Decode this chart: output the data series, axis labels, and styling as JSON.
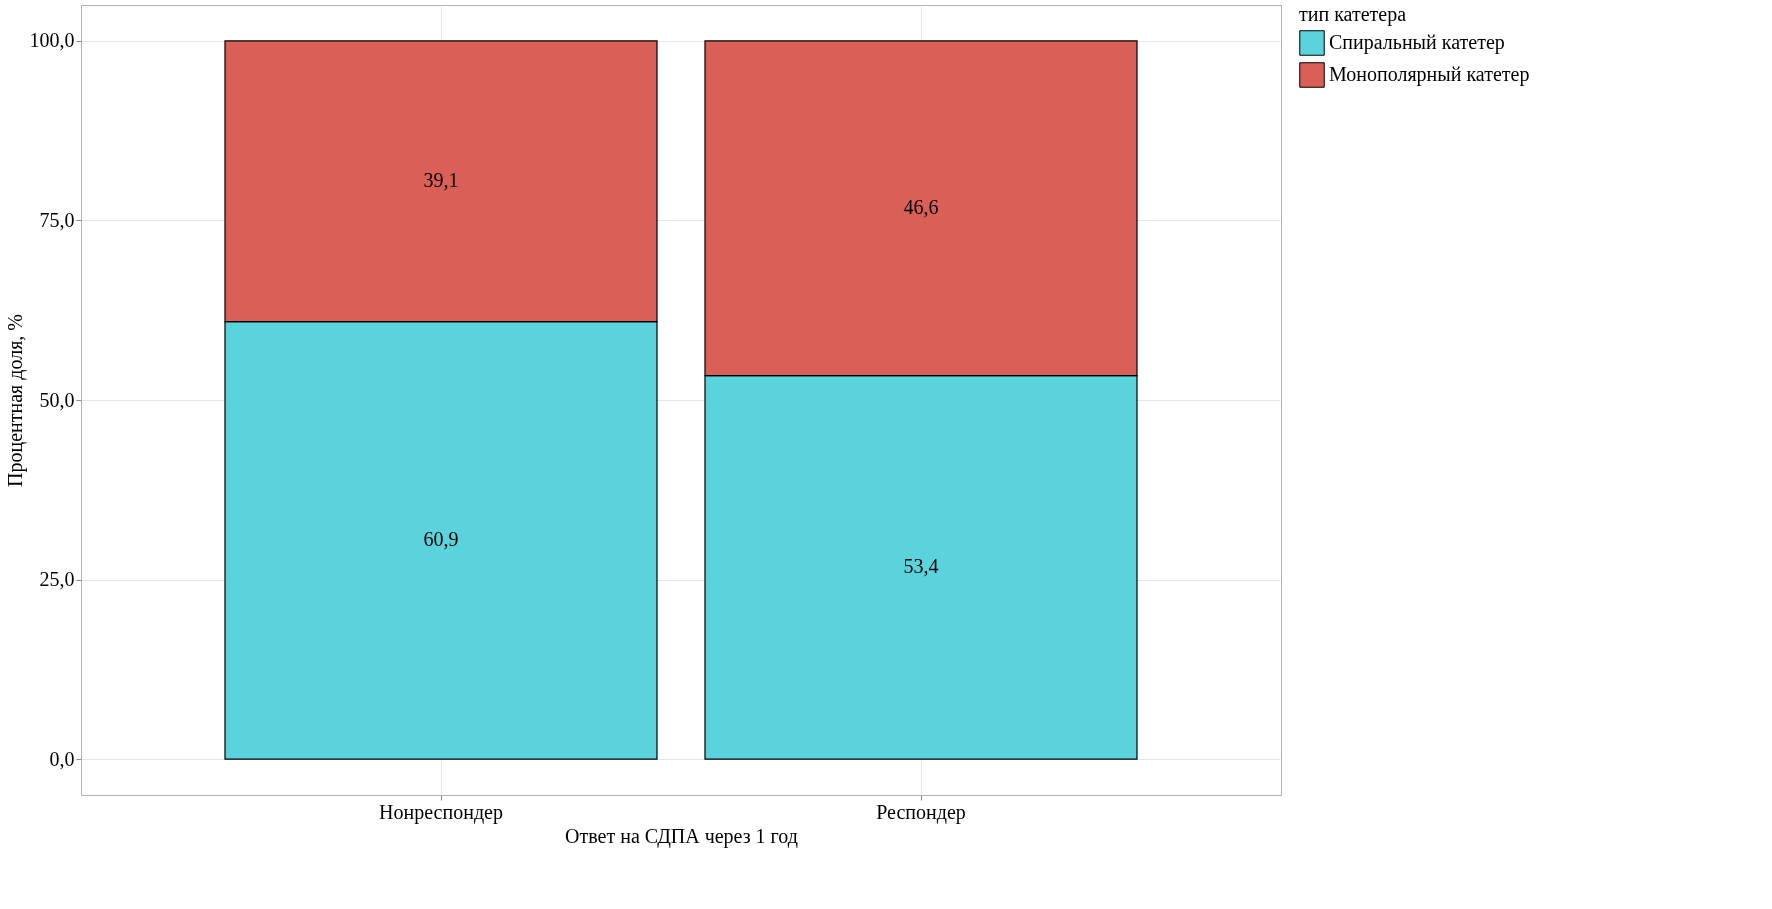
{
  "chart_data": {
    "type": "bar",
    "stacked": true,
    "xlabel": "Ответ на СДПА через 1 год",
    "ylabel": "Процентная доля, %",
    "legend_title": "тип катетера",
    "categories": [
      "Нонреспондер",
      "Респондер"
    ],
    "series": [
      {
        "name": "Спиральный катетер",
        "color": "#5ad3dc",
        "values": [
          60.9,
          53.4
        ],
        "value_labels": [
          "60,9",
          "53,4"
        ]
      },
      {
        "name": "Монополярный катетер",
        "color": "#da5f56",
        "values": [
          39.1,
          46.6
        ],
        "value_labels": [
          "39,1",
          "46,6"
        ]
      }
    ],
    "ylim": [
      -5,
      105
    ],
    "yticks": [
      {
        "value": 0,
        "label": "0,0"
      },
      {
        "value": 25,
        "label": "25,0"
      },
      {
        "value": 50,
        "label": "50,0"
      },
      {
        "value": 75,
        "label": "75,0"
      },
      {
        "value": 100,
        "label": "100,0"
      }
    ],
    "grid": true,
    "legend": "right"
  }
}
